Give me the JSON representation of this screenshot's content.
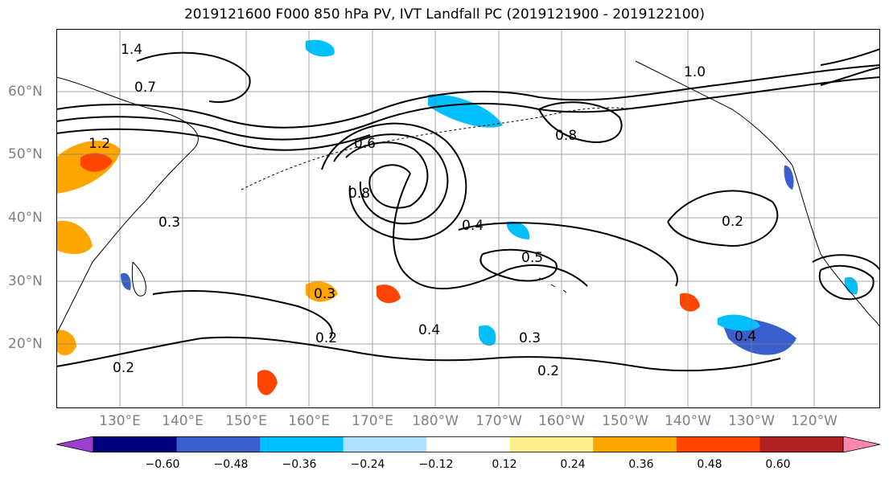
{
  "title": "2019121600 F000 850 hPa PV, IVT Landfall PC (2019121900 - 2019122100)",
  "lon_labels": [
    "130°E",
    "140°E",
    "150°E",
    "160°E",
    "170°E",
    "180°W",
    "170°W",
    "160°W",
    "150°W",
    "140°W",
    "130°W",
    "120°W"
  ],
  "lat_labels": [
    "60°N",
    "50°N",
    "40°N",
    "30°N",
    "20°N"
  ],
  "colorbar": {
    "colors": [
      "#9b3fd0",
      "#00007f",
      "#3a5fcd",
      "#00bfff",
      "#b0e2ff",
      "#ffffff",
      "#ffec8b",
      "#ffa500",
      "#ff4500",
      "#b22222",
      "#ff86b0"
    ],
    "ticks": [
      "−0.60",
      "−0.48",
      "−0.36",
      "−0.24",
      "−0.12",
      "0.12",
      "0.24",
      "0.36",
      "0.48",
      "0.60"
    ]
  },
  "contour_labels": [
    "1.4",
    "1.2",
    "1.0",
    "0.8",
    "0.7",
    "0.6",
    "0.5",
    "0.4",
    "0.3",
    "0.2"
  ],
  "colors": {
    "contour": "#000000",
    "grid": "#808080",
    "coast": "#000000"
  }
}
